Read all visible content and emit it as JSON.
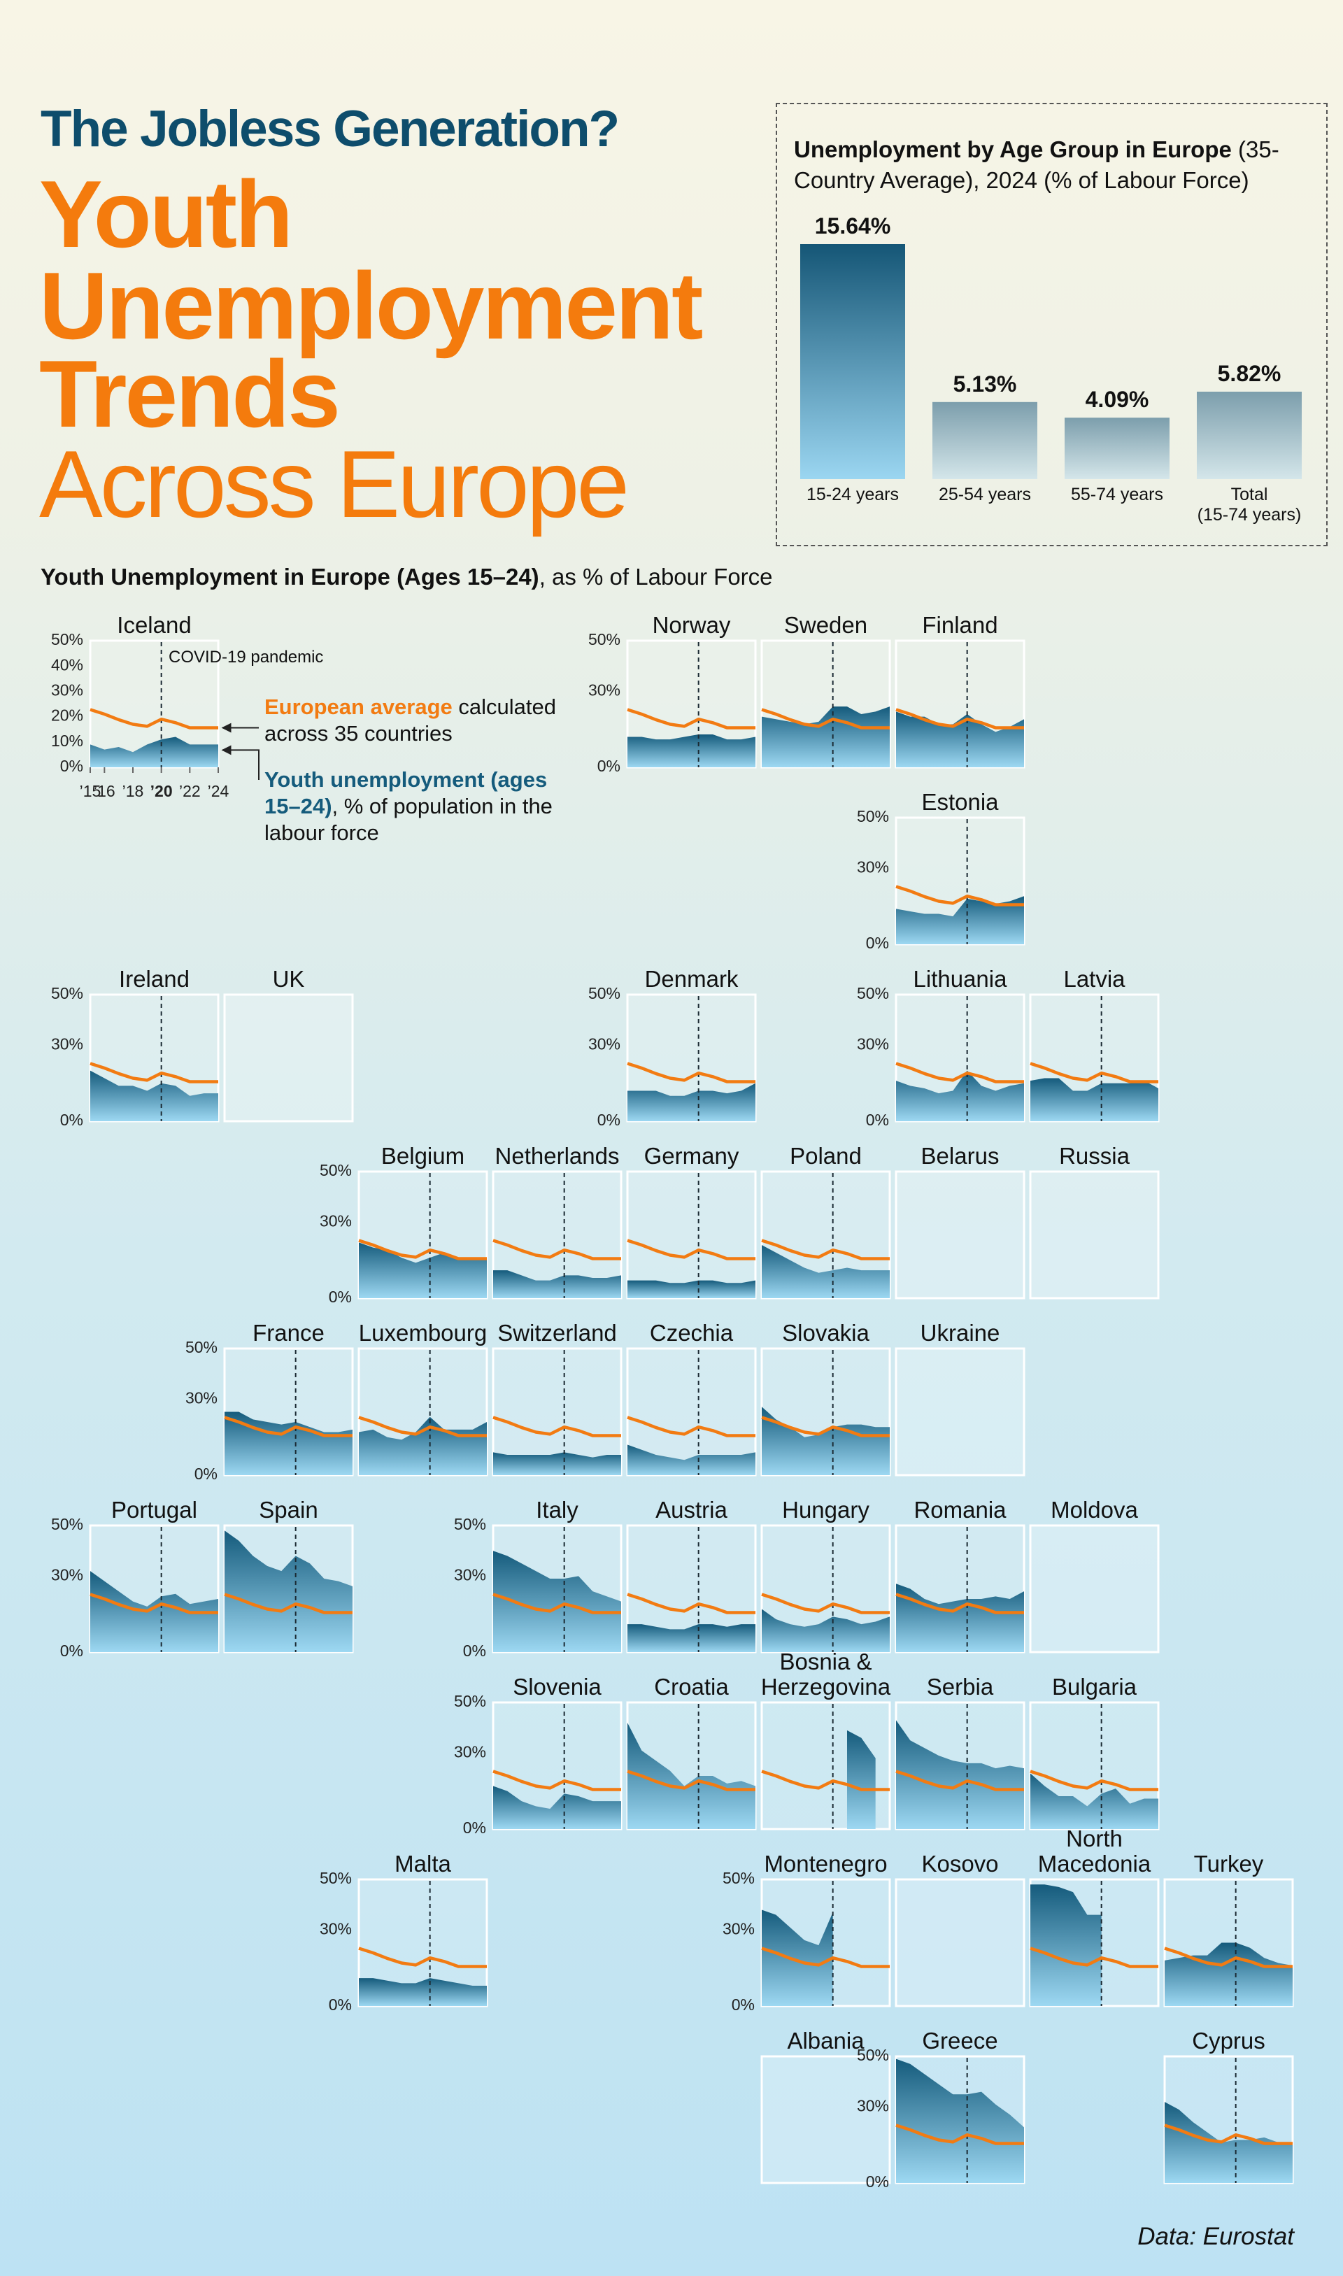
{
  "header": {
    "kicker": "The Jobless Generation?",
    "title_lines": [
      "Youth",
      "Unemployment",
      "Trends"
    ],
    "title_light": "Across Europe"
  },
  "chart_data": [
    {
      "type": "bar",
      "title_bold": "Unemployment by Age Group in Europe",
      "title_rest": "(35-Country Average), 2024 (% of Labour Force)",
      "categories": [
        "15-24 years",
        "25-54 years",
        "55-74 years",
        "Total\n(15-74 years)"
      ],
      "values": [
        15.64,
        5.13,
        4.09,
        5.82
      ],
      "value_labels": [
        "15.64%",
        "5.13%",
        "4.09%",
        "5.82%"
      ],
      "colors": [
        "#155676",
        "#7c9eac",
        "#7c9eac",
        "#7c9eac"
      ],
      "colors_light": [
        "#9bd6f1",
        "#d4e6ea",
        "#d4e6ea",
        "#d4e6ea"
      ]
    },
    {
      "type": "small-multiples",
      "title_bold": "Youth Unemployment in Europe (Ages 15–24)",
      "title_rest": ", as % of Labour Force",
      "years": [
        2015,
        2016,
        2017,
        2018,
        2019,
        2020,
        2021,
        2022,
        2023,
        2024
      ],
      "xlim": [
        2015,
        2024
      ],
      "xticks": [
        {
          "value": 2015,
          "label": "’15"
        },
        {
          "value": 2016,
          "label": "’16"
        },
        {
          "value": 2018,
          "label": "’18"
        },
        {
          "value": 2020,
          "label": "’20"
        },
        {
          "value": 2022,
          "label": "’22"
        },
        {
          "value": 2024,
          "label": "’24"
        }
      ],
      "ylim": [
        0,
        50
      ],
      "yticks": [
        {
          "value": 0,
          "label": "0%"
        },
        {
          "value": 30,
          "label": "30%"
        },
        {
          "value": 50,
          "label": "50%"
        }
      ],
      "detail_yticks": [
        {
          "value": 0,
          "label": "0%"
        },
        {
          "value": 10,
          "label": "10%"
        },
        {
          "value": 20,
          "label": "20%"
        },
        {
          "value": 30,
          "label": "30%"
        },
        {
          "value": 40,
          "label": "40%"
        },
        {
          "value": 50,
          "label": "50%"
        }
      ],
      "covid_year": 2020,
      "covid_label": "COVID-19 pandemic",
      "average": {
        "name": "European average",
        "note": "calculated across 35 countries",
        "color": "#f27b12",
        "values": [
          22.8,
          21,
          18.8,
          17,
          16.2,
          19,
          17.6,
          15.6,
          15.6,
          15.6
        ]
      },
      "youth": {
        "name": "Youth unemployment (ages 15–24)",
        "note": ", % of population in the labour force",
        "color": "#155b7c",
        "color_light": "#9dd8f2"
      },
      "countries": [
        {
          "name": "Iceland",
          "values": [
            9,
            7,
            8,
            6,
            9,
            11,
            12,
            9,
            9,
            9
          ]
        },
        {
          "name": "Norway",
          "values": [
            12,
            12,
            11,
            11,
            12,
            13,
            13,
            11,
            11,
            12
          ]
        },
        {
          "name": "Sweden",
          "values": [
            20,
            19,
            18,
            17,
            18,
            24,
            24,
            21,
            22,
            24
          ]
        },
        {
          "name": "Finland",
          "values": [
            22,
            20,
            20,
            17,
            17,
            21,
            17,
            14,
            16,
            19
          ]
        },
        {
          "name": "Estonia",
          "values": [
            14,
            13,
            12,
            12,
            11,
            18,
            17,
            16,
            17,
            19
          ]
        },
        {
          "name": "Ireland",
          "values": [
            20,
            17,
            14,
            14,
            12,
            15,
            14,
            10,
            11,
            11
          ]
        },
        {
          "name": "UK",
          "values": [
            null,
            null,
            null,
            null,
            null,
            null,
            null,
            null,
            null,
            null
          ]
        },
        {
          "name": "Denmark",
          "values": [
            12,
            12,
            12,
            10,
            10,
            12,
            12,
            11,
            12,
            15
          ]
        },
        {
          "name": "Lithuania",
          "values": [
            16,
            14,
            13,
            11,
            12,
            20,
            14,
            12,
            14,
            15
          ]
        },
        {
          "name": "Latvia",
          "values": [
            16,
            17,
            17,
            12,
            12,
            15,
            15,
            15,
            16,
            13
          ]
        },
        {
          "name": "Belgium",
          "values": [
            22,
            20,
            19,
            16,
            14,
            16,
            18,
            16,
            16,
            16
          ]
        },
        {
          "name": "Netherlands",
          "values": [
            11,
            11,
            9,
            7,
            7,
            9,
            9,
            8,
            8,
            9
          ]
        },
        {
          "name": "Germany",
          "values": [
            7,
            7,
            7,
            6,
            6,
            7,
            7,
            6,
            6,
            7
          ]
        },
        {
          "name": "Poland",
          "values": [
            21,
            18,
            15,
            12,
            10,
            11,
            12,
            11,
            11,
            11
          ]
        },
        {
          "name": "Belarus",
          "values": [
            null,
            null,
            null,
            null,
            null,
            null,
            null,
            null,
            null,
            null
          ]
        },
        {
          "name": "Russia",
          "values": [
            null,
            null,
            null,
            null,
            null,
            null,
            null,
            null,
            null,
            null
          ]
        },
        {
          "name": "France",
          "values": [
            25,
            25,
            22,
            21,
            20,
            21,
            19,
            17,
            17,
            18
          ]
        },
        {
          "name": "Luxembourg",
          "values": [
            17,
            18,
            15,
            14,
            17,
            23,
            18,
            18,
            18,
            21
          ]
        },
        {
          "name": "Switzerland",
          "values": [
            9,
            8,
            8,
            8,
            8,
            9,
            8,
            7,
            8,
            8
          ]
        },
        {
          "name": "Czechia",
          "values": [
            12,
            10,
            8,
            7,
            6,
            8,
            8,
            8,
            8,
            9
          ]
        },
        {
          "name": "Slovakia",
          "values": [
            27,
            22,
            19,
            15,
            16,
            19,
            20,
            20,
            19,
            19
          ]
        },
        {
          "name": "Ukraine",
          "values": [
            null,
            null,
            null,
            null,
            null,
            null,
            null,
            null,
            null,
            null
          ]
        },
        {
          "name": "Portugal",
          "values": [
            32,
            28,
            24,
            20,
            18,
            22,
            23,
            19,
            20,
            21
          ]
        },
        {
          "name": "Spain",
          "values": [
            48,
            44,
            38,
            34,
            32,
            38,
            35,
            29,
            28,
            26
          ]
        },
        {
          "name": "Italy",
          "values": [
            40,
            38,
            35,
            32,
            29,
            29,
            30,
            24,
            22,
            20
          ]
        },
        {
          "name": "Austria",
          "values": [
            11,
            11,
            10,
            9,
            9,
            11,
            11,
            10,
            11,
            11
          ]
        },
        {
          "name": "Hungary",
          "values": [
            17,
            13,
            11,
            10,
            11,
            14,
            13,
            11,
            12,
            14
          ]
        },
        {
          "name": "Romania",
          "values": [
            27,
            25,
            21,
            19,
            20,
            21,
            21,
            22,
            21,
            24
          ]
        },
        {
          "name": "Moldova",
          "values": [
            null,
            null,
            null,
            null,
            null,
            null,
            null,
            null,
            null,
            null
          ]
        },
        {
          "name": "Slovenia",
          "values": [
            17,
            15,
            11,
            9,
            8,
            14,
            13,
            11,
            11,
            11
          ]
        },
        {
          "name": "Croatia",
          "values": [
            42,
            31,
            27,
            23,
            17,
            21,
            21,
            18,
            19,
            17
          ]
        },
        {
          "name": "Bosnia & Herzegovina",
          "values": [
            null,
            null,
            null,
            null,
            null,
            null,
            39,
            36,
            28,
            null
          ]
        },
        {
          "name": "Serbia",
          "values": [
            43,
            35,
            32,
            29,
            27,
            26,
            26,
            24,
            25,
            24
          ]
        },
        {
          "name": "Bulgaria",
          "values": [
            22,
            17,
            13,
            13,
            9,
            14,
            16,
            10,
            12,
            12
          ]
        },
        {
          "name": "Malta",
          "values": [
            11,
            11,
            10,
            9,
            9,
            11,
            10,
            9,
            8,
            8
          ]
        },
        {
          "name": "Montenegro",
          "values": [
            38,
            36,
            31,
            26,
            24,
            37,
            null,
            null,
            null,
            null
          ]
        },
        {
          "name": "Kosovo",
          "values": [
            null,
            null,
            null,
            null,
            null,
            null,
            null,
            null,
            null,
            null
          ]
        },
        {
          "name": "North Macedonia",
          "values": [
            48,
            48,
            47,
            45,
            36,
            36,
            null,
            null,
            null,
            null
          ]
        },
        {
          "name": "Turkey",
          "values": [
            18,
            19,
            20,
            20,
            25,
            25,
            23,
            19,
            17,
            16
          ]
        },
        {
          "name": "Albania",
          "values": [
            null,
            null,
            null,
            null,
            null,
            null,
            null,
            null,
            null,
            null
          ]
        },
        {
          "name": "Greece",
          "values": [
            49,
            47,
            43,
            39,
            35,
            35,
            36,
            31,
            27,
            22
          ]
        },
        {
          "name": "Cyprus",
          "values": [
            32,
            29,
            24,
            20,
            16,
            17,
            17,
            18,
            16,
            15
          ]
        }
      ]
    }
  ],
  "source": "Data: Eurostat"
}
